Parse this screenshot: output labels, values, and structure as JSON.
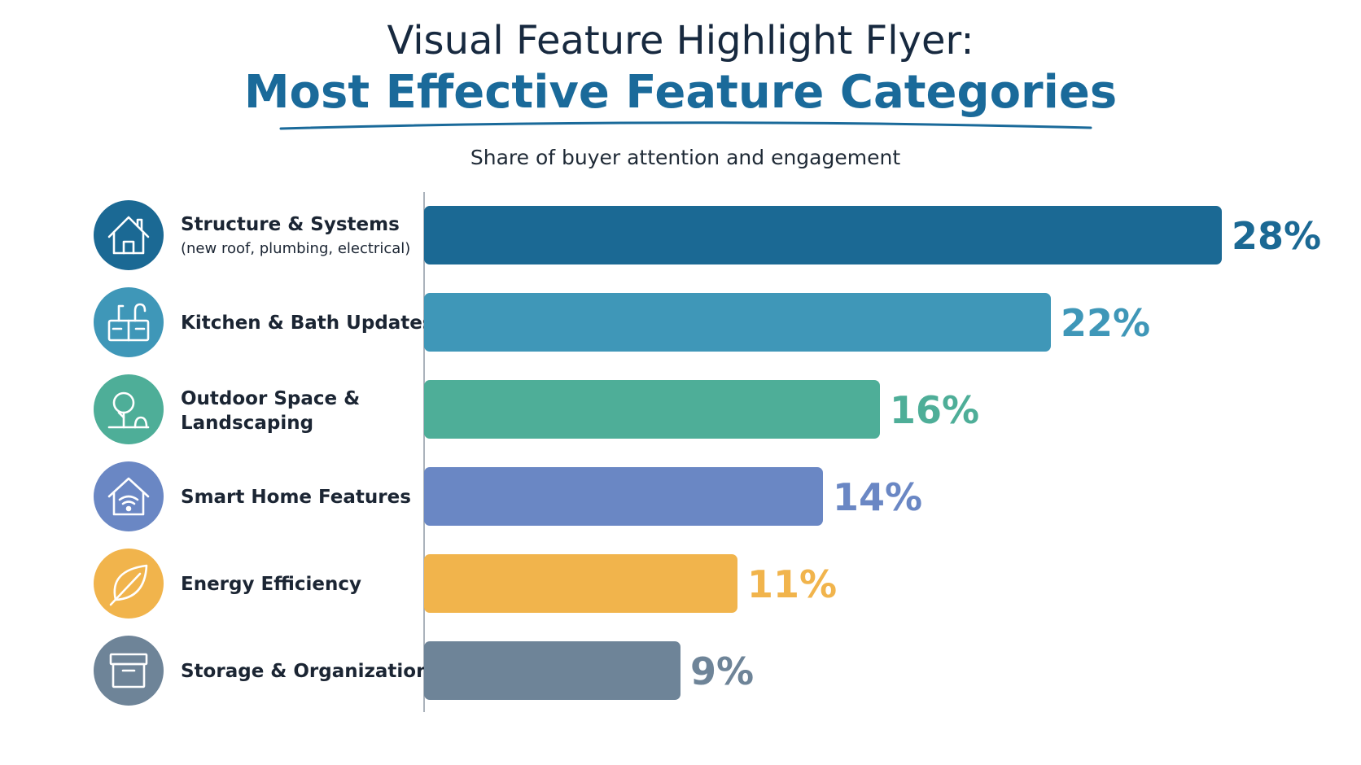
{
  "header": {
    "title_line1": "Visual Feature Highlight Flyer:",
    "title_line2": "Most Effective Feature Categories",
    "subtitle": "Share of buyer attention and engagement"
  },
  "chart_data": {
    "type": "bar",
    "orientation": "horizontal",
    "title": "Visual Feature Highlight Flyer: Most Effective Feature Categories",
    "subtitle": "Share of buyer attention and engagement",
    "unit": "%",
    "xlim": [
      0,
      28
    ],
    "grid": false,
    "legend": "none",
    "categories": [
      "Structure & Systems",
      "Kitchen & Bath Updates",
      "Outdoor Space & Landscaping",
      "Smart Home Features",
      "Energy Efficiency",
      "Storage & Organization"
    ],
    "values": [
      28,
      22,
      16,
      14,
      11,
      9
    ],
    "value_labels": [
      "28%",
      "22%",
      "16%",
      "14%",
      "11%",
      "9%"
    ],
    "bars": [
      {
        "label_lines": [
          "Structure & Systems"
        ],
        "sublabel": "(new roof, plumbing, electrical)",
        "value": 28,
        "value_label": "28%",
        "color": "#1b6994",
        "icon": "house-icon"
      },
      {
        "label_lines": [
          "Kitchen & Bath Updates"
        ],
        "sublabel": "",
        "value": 22,
        "value_label": "22%",
        "color": "#3f97b8",
        "icon": "faucet-sink-icon"
      },
      {
        "label_lines": [
          "Outdoor Space &",
          "Landscaping"
        ],
        "sublabel": "",
        "value": 16,
        "value_label": "16%",
        "color": "#4eae98",
        "icon": "tree-icon"
      },
      {
        "label_lines": [
          "Smart Home Features"
        ],
        "sublabel": "",
        "value": 14,
        "value_label": "14%",
        "color": "#6a87c4",
        "icon": "smart-home-wifi-icon"
      },
      {
        "label_lines": [
          "Energy Efficiency"
        ],
        "sublabel": "",
        "value": 11,
        "value_label": "11%",
        "color": "#f1b44c",
        "icon": "leaf-icon"
      },
      {
        "label_lines": [
          "Storage & Organization"
        ],
        "sublabel": "",
        "value": 9,
        "value_label": "9%",
        "color": "#6e8498",
        "icon": "storage-box-icon"
      }
    ]
  },
  "colors": {
    "title_dark": "#17293f",
    "title_accent": "#1a6a9a",
    "value_dark_blue": "#1b6994",
    "value_teal": "#3f97b8",
    "value_green": "#4eae98",
    "value_periwinkle": "#6a87c4",
    "value_gold": "#f1b44c",
    "value_slate": "#6e8498",
    "axis_line": "#8f9aa6"
  }
}
